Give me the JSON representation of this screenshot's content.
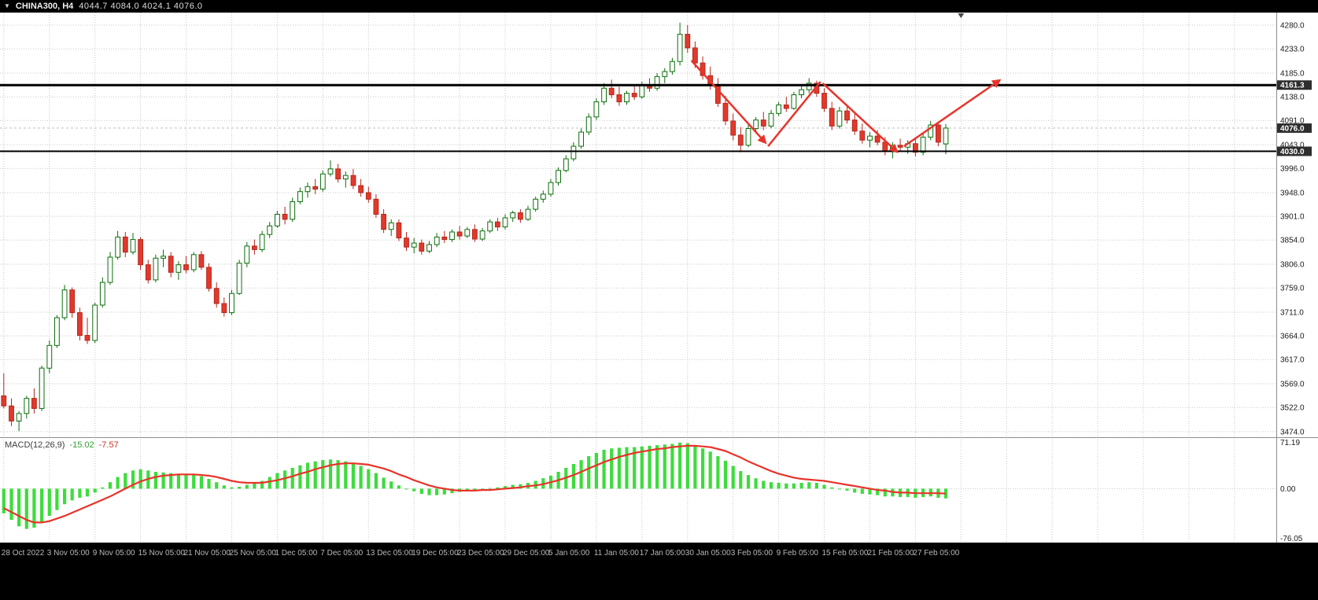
{
  "titlebar": {
    "dropdown_icon": "▼",
    "symbol": "CHINA300, H4",
    "ohlc": "4044.7 4084.0 4024.1 4076.0"
  },
  "macd_header": {
    "label": "MACD(12,26,9)",
    "value": "-15.02",
    "signal_value": "-7.57"
  },
  "objects": {
    "resistance_line": {
      "price": 4161.3,
      "label": "4161.3",
      "thickness": 3
    },
    "support_line": {
      "price": 4030.0,
      "label": "4030.0",
      "thickness": 2
    },
    "bid_line": {
      "price": 4076.0,
      "label": "4076.0"
    },
    "trend_arrows": [
      {
        "from_slot": 90.5,
        "from_price": 4210,
        "to_slot": 100.2,
        "to_price": 4048,
        "head": true
      },
      {
        "from_slot": 100.6,
        "from_price": 4040,
        "to_slot": 107.5,
        "to_price": 4168,
        "head": false
      },
      {
        "from_slot": 107.8,
        "from_price": 4165,
        "to_slot": 117.5,
        "to_price": 4030,
        "head": true
      },
      {
        "from_slot": 118.5,
        "from_price": 4040,
        "to_slot": 131.0,
        "to_price": 4170,
        "head": true
      }
    ]
  },
  "chart_data": {
    "type": "candlestick",
    "symbol": "CHINA300",
    "timeframe": "H4",
    "current_quote": {
      "open": "4044.7",
      "high": "4084.0",
      "low": "4024.1",
      "close": "4076.0"
    },
    "price_range": [
      3463,
      4305
    ],
    "visible_slots": 168,
    "x_label_every": 6,
    "x_tick_labels": [
      "28 Oct 2022",
      "3 Nov 05:00",
      "9 Nov 05:00",
      "15 Nov 05:00",
      "21 Nov 05:00",
      "25 Nov 05:00",
      "1 Dec 05:00",
      "7 Dec 05:00",
      "13 Dec 05:00",
      "19 Dec 05:00",
      "23 Dec 05:00",
      "29 Dec 05:00",
      "5 Jan 05:00",
      "11 Jan 05:00",
      "17 Jan 05:00",
      "30 Jan 05:00",
      "3 Feb 05:00",
      "9 Feb 05:00",
      "15 Feb 05:00",
      "21 Feb 05:00",
      "27 Feb 05:00"
    ],
    "y_tick_labels": [
      "4280.0",
      "4233.0",
      "4185.0",
      "4138.0",
      "4091.0",
      "4043.0",
      "3996.0",
      "3948.0",
      "3901.0",
      "3854.0",
      "3806.0",
      "3759.0",
      "3711.0",
      "3664.0",
      "3617.0",
      "3569.0",
      "3522.0",
      "3474.0"
    ],
    "candles": [
      [
        3545,
        3590,
        3520,
        3525
      ],
      [
        3525,
        3540,
        3485,
        3495
      ],
      [
        3495,
        3515,
        3475,
        3510
      ],
      [
        3510,
        3545,
        3500,
        3540
      ],
      [
        3540,
        3560,
        3510,
        3520
      ],
      [
        3520,
        3605,
        3515,
        3600
      ],
      [
        3600,
        3655,
        3590,
        3645
      ],
      [
        3645,
        3705,
        3640,
        3700
      ],
      [
        3700,
        3765,
        3695,
        3755
      ],
      [
        3755,
        3760,
        3700,
        3710
      ],
      [
        3710,
        3720,
        3655,
        3665
      ],
      [
        3665,
        3700,
        3648,
        3655
      ],
      [
        3655,
        3730,
        3650,
        3725
      ],
      [
        3725,
        3780,
        3720,
        3770
      ],
      [
        3770,
        3830,
        3765,
        3820
      ],
      [
        3820,
        3872,
        3815,
        3860
      ],
      [
        3860,
        3870,
        3820,
        3830
      ],
      [
        3830,
        3868,
        3825,
        3855
      ],
      [
        3855,
        3860,
        3795,
        3805
      ],
      [
        3805,
        3815,
        3768,
        3775
      ],
      [
        3775,
        3825,
        3770,
        3818
      ],
      [
        3818,
        3835,
        3800,
        3822
      ],
      [
        3822,
        3830,
        3780,
        3790
      ],
      [
        3790,
        3812,
        3775,
        3805
      ],
      [
        3805,
        3822,
        3788,
        3795
      ],
      [
        3795,
        3830,
        3790,
        3825
      ],
      [
        3825,
        3832,
        3795,
        3800
      ],
      [
        3800,
        3808,
        3752,
        3758
      ],
      [
        3758,
        3770,
        3720,
        3728
      ],
      [
        3728,
        3740,
        3702,
        3710
      ],
      [
        3710,
        3755,
        3705,
        3748
      ],
      [
        3748,
        3815,
        3745,
        3808
      ],
      [
        3808,
        3850,
        3800,
        3842
      ],
      [
        3842,
        3855,
        3825,
        3835
      ],
      [
        3835,
        3872,
        3830,
        3865
      ],
      [
        3865,
        3890,
        3858,
        3882
      ],
      [
        3882,
        3912,
        3878,
        3905
      ],
      [
        3905,
        3920,
        3885,
        3895
      ],
      [
        3895,
        3938,
        3890,
        3930
      ],
      [
        3930,
        3958,
        3925,
        3950
      ],
      [
        3950,
        3968,
        3938,
        3960
      ],
      [
        3960,
        3975,
        3945,
        3955
      ],
      [
        3955,
        3992,
        3950,
        3985
      ],
      [
        3985,
        4012,
        3980,
        3995
      ],
      [
        3995,
        4005,
        3968,
        3975
      ],
      [
        3975,
        3990,
        3958,
        3982
      ],
      [
        3982,
        3995,
        3955,
        3962
      ],
      [
        3962,
        3975,
        3940,
        3948
      ],
      [
        3948,
        3960,
        3928,
        3935
      ],
      [
        3935,
        3945,
        3898,
        3905
      ],
      [
        3905,
        3915,
        3868,
        3875
      ],
      [
        3875,
        3895,
        3862,
        3888
      ],
      [
        3888,
        3895,
        3852,
        3858
      ],
      [
        3858,
        3870,
        3832,
        3840
      ],
      [
        3840,
        3858,
        3828,
        3848
      ],
      [
        3848,
        3855,
        3825,
        3832
      ],
      [
        3832,
        3852,
        3828,
        3845
      ],
      [
        3845,
        3868,
        3840,
        3860
      ],
      [
        3860,
        3872,
        3848,
        3855
      ],
      [
        3855,
        3875,
        3850,
        3870
      ],
      [
        3870,
        3882,
        3855,
        3862
      ],
      [
        3862,
        3880,
        3858,
        3875
      ],
      [
        3875,
        3885,
        3850,
        3856
      ],
      [
        3856,
        3878,
        3852,
        3872
      ],
      [
        3872,
        3895,
        3868,
        3890
      ],
      [
        3890,
        3898,
        3872,
        3880
      ],
      [
        3880,
        3905,
        3875,
        3898
      ],
      [
        3898,
        3912,
        3890,
        3908
      ],
      [
        3908,
        3915,
        3888,
        3895
      ],
      [
        3895,
        3922,
        3892,
        3915
      ],
      [
        3915,
        3940,
        3910,
        3935
      ],
      [
        3935,
        3952,
        3928,
        3945
      ],
      [
        3945,
        3975,
        3940,
        3968
      ],
      [
        3968,
        3998,
        3962,
        3992
      ],
      [
        3992,
        4022,
        3988,
        4015
      ],
      [
        4015,
        4048,
        4010,
        4040
      ],
      [
        4040,
        4075,
        4035,
        4068
      ],
      [
        4068,
        4105,
        4062,
        4098
      ],
      [
        4098,
        4135,
        4092,
        4128
      ],
      [
        4128,
        4165,
        4122,
        4155
      ],
      [
        4155,
        4172,
        4135,
        4142
      ],
      [
        4142,
        4158,
        4120,
        4128
      ],
      [
        4128,
        4150,
        4122,
        4145
      ],
      [
        4145,
        4162,
        4132,
        4138
      ],
      [
        4138,
        4168,
        4134,
        4160
      ],
      [
        4160,
        4175,
        4148,
        4155
      ],
      [
        4155,
        4185,
        4150,
        4178
      ],
      [
        4178,
        4195,
        4165,
        4188
      ],
      [
        4188,
        4215,
        4182,
        4208
      ],
      [
        4208,
        4285,
        4200,
        4262
      ],
      [
        4262,
        4280,
        4225,
        4235
      ],
      [
        4235,
        4248,
        4195,
        4205
      ],
      [
        4205,
        4218,
        4172,
        4180
      ],
      [
        4180,
        4198,
        4152,
        4160
      ],
      [
        4160,
        4175,
        4118,
        4125
      ],
      [
        4125,
        4140,
        4082,
        4090
      ],
      [
        4090,
        4105,
        4052,
        4062
      ],
      [
        4062,
        4078,
        4028,
        4042
      ],
      [
        4042,
        4082,
        4038,
        4075
      ],
      [
        4075,
        4098,
        4068,
        4092
      ],
      [
        4092,
        4108,
        4072,
        4080
      ],
      [
        4080,
        4112,
        4076,
        4105
      ],
      [
        4105,
        4128,
        4100,
        4122
      ],
      [
        4122,
        4138,
        4108,
        4115
      ],
      [
        4115,
        4148,
        4112,
        4142
      ],
      [
        4142,
        4160,
        4135,
        4152
      ],
      [
        4152,
        4175,
        4145,
        4165
      ],
      [
        4165,
        4170,
        4138,
        4145
      ],
      [
        4145,
        4155,
        4108,
        4115
      ],
      [
        4115,
        4128,
        4072,
        4080
      ],
      [
        4080,
        4118,
        4075,
        4110
      ],
      [
        4110,
        4122,
        4085,
        4092
      ],
      [
        4092,
        4105,
        4062,
        4070
      ],
      [
        4070,
        4085,
        4045,
        4052
      ],
      [
        4052,
        4068,
        4038,
        4060
      ],
      [
        4060,
        4072,
        4042,
        4048
      ],
      [
        4048,
        4058,
        4022,
        4030
      ],
      [
        4030,
        4048,
        4016,
        4042
      ],
      [
        4042,
        4055,
        4030,
        4038
      ],
      [
        4038,
        4052,
        4025,
        4045
      ],
      [
        4045,
        4058,
        4020,
        4028
      ],
      [
        4028,
        4065,
        4022,
        4058
      ],
      [
        4058,
        4090,
        4052,
        4082
      ],
      [
        4082,
        4088,
        4040,
        4048
      ],
      [
        4044.7,
        4084.0,
        4024.1,
        4076.0
      ]
    ],
    "macd": {
      "params": "12,26,9",
      "range": [
        -83,
        78
      ],
      "scale_labels": [
        "71.19",
        "0.00",
        "-76.05"
      ],
      "histogram": [
        -38,
        -48,
        -58,
        -62,
        -60,
        -52,
        -42,
        -33,
        -24,
        -18,
        -14,
        -12,
        -6,
        2,
        10,
        18,
        24,
        28,
        30,
        28,
        26,
        25,
        24,
        23,
        22,
        21,
        19,
        15,
        10,
        5,
        2,
        3,
        6,
        8,
        12,
        18,
        24,
        28,
        32,
        36,
        40,
        42,
        44,
        45,
        44,
        42,
        39,
        35,
        30,
        24,
        17,
        11,
        5,
        0,
        -4,
        -8,
        -10,
        -10,
        -9,
        -7,
        -5,
        -3,
        -2,
        -1,
        1,
        2,
        4,
        6,
        7,
        9,
        12,
        16,
        20,
        26,
        32,
        38,
        44,
        50,
        55,
        60,
        62,
        63,
        64,
        64,
        65,
        66,
        67,
        68,
        69,
        71,
        70,
        66,
        62,
        57,
        50,
        43,
        35,
        27,
        21,
        16,
        12,
        10,
        9,
        8,
        8,
        9,
        10,
        9,
        6,
        2,
        -1,
        -3,
        -6,
        -8,
        -9,
        -10,
        -12,
        -12,
        -13,
        -13,
        -14,
        -13,
        -12,
        -14,
        -15.02
      ],
      "signal": [
        -30,
        -36,
        -42,
        -48,
        -52,
        -52,
        -50,
        -46,
        -42,
        -37,
        -32,
        -27,
        -22,
        -17,
        -12,
        -6,
        0,
        6,
        11,
        15,
        18,
        20,
        21,
        22,
        22,
        22,
        21,
        20,
        18,
        15,
        12,
        10,
        9,
        9,
        9,
        11,
        13,
        16,
        19,
        23,
        26,
        30,
        33,
        36,
        38,
        39,
        39,
        38,
        37,
        34,
        31,
        27,
        22,
        18,
        13,
        9,
        5,
        2,
        0,
        -2,
        -3,
        -3,
        -3,
        -2,
        -2,
        -1,
        0,
        1,
        2,
        4,
        5,
        7,
        10,
        13,
        17,
        21,
        26,
        31,
        36,
        41,
        45,
        49,
        52,
        55,
        57,
        59,
        61,
        62,
        64,
        65,
        66,
        66,
        65,
        64,
        61,
        58,
        53,
        48,
        42,
        37,
        32,
        27,
        23,
        20,
        17,
        15,
        14,
        13,
        12,
        10,
        8,
        6,
        4,
        2,
        0,
        -2,
        -3,
        -5,
        -6,
        -6,
        -7,
        -7,
        -7,
        -7,
        -7.57
      ]
    }
  },
  "colors": {
    "frame_bg": "#000000",
    "panel_bg": "#ffffff",
    "grid": "#c8c8c8",
    "axis_text": "#1a1a1a",
    "date_text": "#b8b8b8",
    "bull_border": "#0b6e0b",
    "bull_fill": "#ffffff",
    "bear_fill": "#e2392c",
    "bear_border": "#b5271d",
    "histogram": "#3ddc3d",
    "signal_line": "#e8332a",
    "trend_arrow": "#e8332a",
    "object_line": "#000000",
    "bid_dash": "#bdbdbd",
    "tag_bg": "#2e2e2e",
    "tag_text": "#ffffff",
    "divider": "#8c8c8c"
  }
}
